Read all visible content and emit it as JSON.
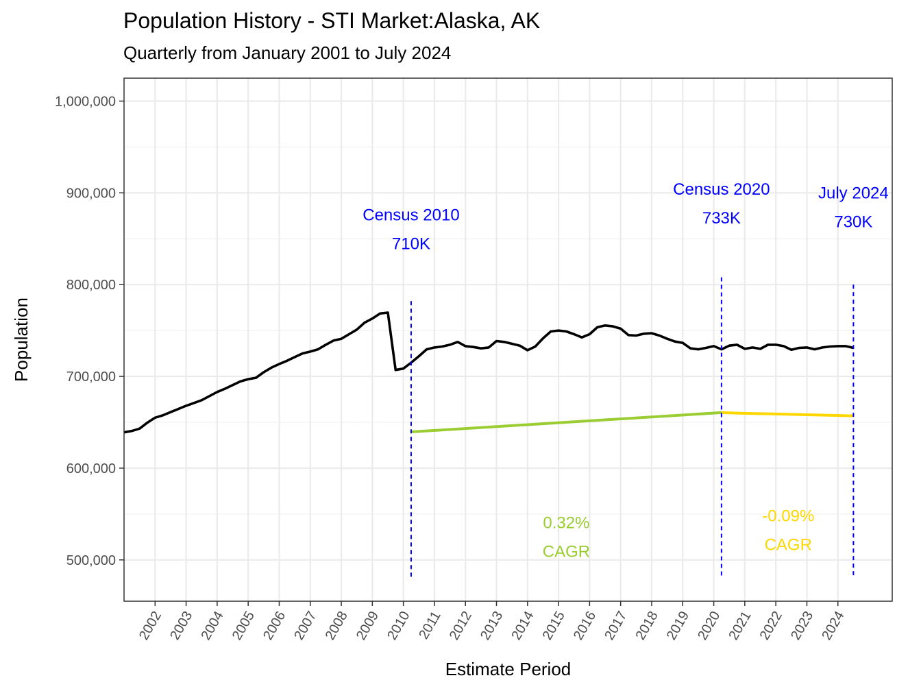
{
  "chart_data": {
    "type": "line",
    "title": "Population History - STI Market:Alaska, AK",
    "subtitle": "Quarterly from January 2001 to July 2024",
    "xlabel": "Estimate Period",
    "ylabel": "Population",
    "ylim": [
      455000,
      1025000
    ],
    "xlim": [
      2001.0,
      2025.75
    ],
    "y_ticks": [
      500000,
      600000,
      700000,
      800000,
      900000,
      1000000
    ],
    "y_tick_labels": [
      "500,000",
      "600,000",
      "700,000",
      "800,000",
      "900,000",
      "1,000,000"
    ],
    "x_ticks": [
      2002,
      2003,
      2004,
      2005,
      2006,
      2007,
      2008,
      2009,
      2010,
      2011,
      2012,
      2013,
      2014,
      2015,
      2016,
      2017,
      2018,
      2019,
      2020,
      2021,
      2022,
      2023,
      2024
    ],
    "x_tick_labels": [
      "2002",
      "2003",
      "2004",
      "2005",
      "2006",
      "2007",
      "2008",
      "2009",
      "2010",
      "2011",
      "2012",
      "2013",
      "2014",
      "2015",
      "2016",
      "2017",
      "2018",
      "2019",
      "2020",
      "2021",
      "2022",
      "2023",
      "2024"
    ],
    "grid": true,
    "series": [
      {
        "color": "#000000",
        "points": [
          [
            2001.0,
            639000
          ],
          [
            2001.25,
            640500
          ],
          [
            2001.5,
            643000
          ],
          [
            2001.75,
            649500
          ],
          [
            2002.0,
            655000
          ],
          [
            2002.25,
            657500
          ],
          [
            2002.5,
            661000
          ],
          [
            2002.75,
            664500
          ],
          [
            2003.0,
            668000
          ],
          [
            2003.25,
            671000
          ],
          [
            2003.5,
            674000
          ],
          [
            2003.75,
            678500
          ],
          [
            2004.0,
            683000
          ],
          [
            2004.25,
            686500
          ],
          [
            2004.5,
            690500
          ],
          [
            2004.75,
            694500
          ],
          [
            2005.0,
            697000
          ],
          [
            2005.25,
            698500
          ],
          [
            2005.5,
            704500
          ],
          [
            2005.75,
            709500
          ],
          [
            2006.0,
            713500
          ],
          [
            2006.25,
            717000
          ],
          [
            2006.5,
            721000
          ],
          [
            2006.75,
            725000
          ],
          [
            2007.0,
            727000
          ],
          [
            2007.25,
            729500
          ],
          [
            2007.5,
            734500
          ],
          [
            2007.75,
            739000
          ],
          [
            2008.0,
            741000
          ],
          [
            2008.25,
            746000
          ],
          [
            2008.5,
            751000
          ],
          [
            2008.75,
            758500
          ],
          [
            2009.0,
            763000
          ],
          [
            2009.25,
            768500
          ],
          [
            2009.5,
            769500
          ],
          [
            2009.75,
            707000
          ],
          [
            2010.0,
            708500
          ],
          [
            2010.25,
            715000
          ],
          [
            2010.5,
            722000
          ],
          [
            2010.75,
            729500
          ],
          [
            2011.0,
            731500
          ],
          [
            2011.25,
            732500
          ],
          [
            2011.5,
            734500
          ],
          [
            2011.75,
            737500
          ],
          [
            2012.0,
            733000
          ],
          [
            2012.25,
            732000
          ],
          [
            2012.5,
            730500
          ],
          [
            2012.75,
            731500
          ],
          [
            2013.0,
            738500
          ],
          [
            2013.25,
            737500
          ],
          [
            2013.5,
            735500
          ],
          [
            2013.75,
            733500
          ],
          [
            2014.0,
            728500
          ],
          [
            2014.25,
            732500
          ],
          [
            2014.5,
            741500
          ],
          [
            2014.75,
            749000
          ],
          [
            2015.0,
            750000
          ],
          [
            2015.25,
            749000
          ],
          [
            2015.5,
            746000
          ],
          [
            2015.75,
            742500
          ],
          [
            2016.0,
            746000
          ],
          [
            2016.25,
            753500
          ],
          [
            2016.5,
            755500
          ],
          [
            2016.75,
            754500
          ],
          [
            2017.0,
            752000
          ],
          [
            2017.25,
            745000
          ],
          [
            2017.5,
            744500
          ],
          [
            2017.75,
            746500
          ],
          [
            2018.0,
            747000
          ],
          [
            2018.25,
            744500
          ],
          [
            2018.5,
            741000
          ],
          [
            2018.75,
            738000
          ],
          [
            2019.0,
            736500
          ],
          [
            2019.25,
            730500
          ],
          [
            2019.5,
            729500
          ],
          [
            2019.75,
            731000
          ],
          [
            2020.0,
            733000
          ],
          [
            2020.25,
            729500
          ],
          [
            2020.5,
            733500
          ],
          [
            2020.75,
            734500
          ],
          [
            2021.0,
            730000
          ],
          [
            2021.25,
            731500
          ],
          [
            2021.5,
            730000
          ],
          [
            2021.75,
            734500
          ],
          [
            2022.0,
            734500
          ],
          [
            2022.25,
            733000
          ],
          [
            2022.5,
            729000
          ],
          [
            2022.75,
            731000
          ],
          [
            2023.0,
            731500
          ],
          [
            2023.25,
            729500
          ],
          [
            2023.5,
            731500
          ],
          [
            2023.75,
            732500
          ],
          [
            2024.0,
            733000
          ],
          [
            2024.25,
            733000
          ],
          [
            2024.5,
            731000
          ]
        ]
      },
      {
        "color": "#9ACD32",
        "points": [
          [
            2010.25,
            639500
          ],
          [
            2020.25,
            660500
          ]
        ]
      },
      {
        "color": "#FFD700",
        "points": [
          [
            2020.25,
            660500
          ],
          [
            2021.0,
            659700
          ],
          [
            2022.0,
            659000
          ],
          [
            2023.0,
            658200
          ],
          [
            2024.5,
            657000
          ]
        ]
      }
    ],
    "vlines": [
      {
        "x": 2010.25,
        "y_top": 782000,
        "color": "#0000FF"
      },
      {
        "x": 2020.25,
        "y_top": 808000,
        "color": "#0000FF"
      },
      {
        "x": 2024.5,
        "y_top": 800000,
        "color": "#0000FF"
      }
    ],
    "annotations": [
      {
        "lines": [
          "Census 2010",
          "710K"
        ],
        "x": 2010.25,
        "y": 870000,
        "color": "#0000FF"
      },
      {
        "lines": [
          "Census 2020",
          "733K"
        ],
        "x": 2020.25,
        "y": 898000,
        "color": "#0000FF"
      },
      {
        "lines": [
          "July 2024",
          "730K"
        ],
        "x": 2024.5,
        "y": 894000,
        "color": "#0000FF"
      },
      {
        "lines": [
          "0.32%",
          "CAGR"
        ],
        "x": 2015.25,
        "y": 534500,
        "color": "#9ACD32"
      },
      {
        "lines": [
          "-0.09%",
          "CAGR"
        ],
        "x": 2022.4,
        "y": 542000,
        "color": "#FFD700"
      }
    ]
  }
}
